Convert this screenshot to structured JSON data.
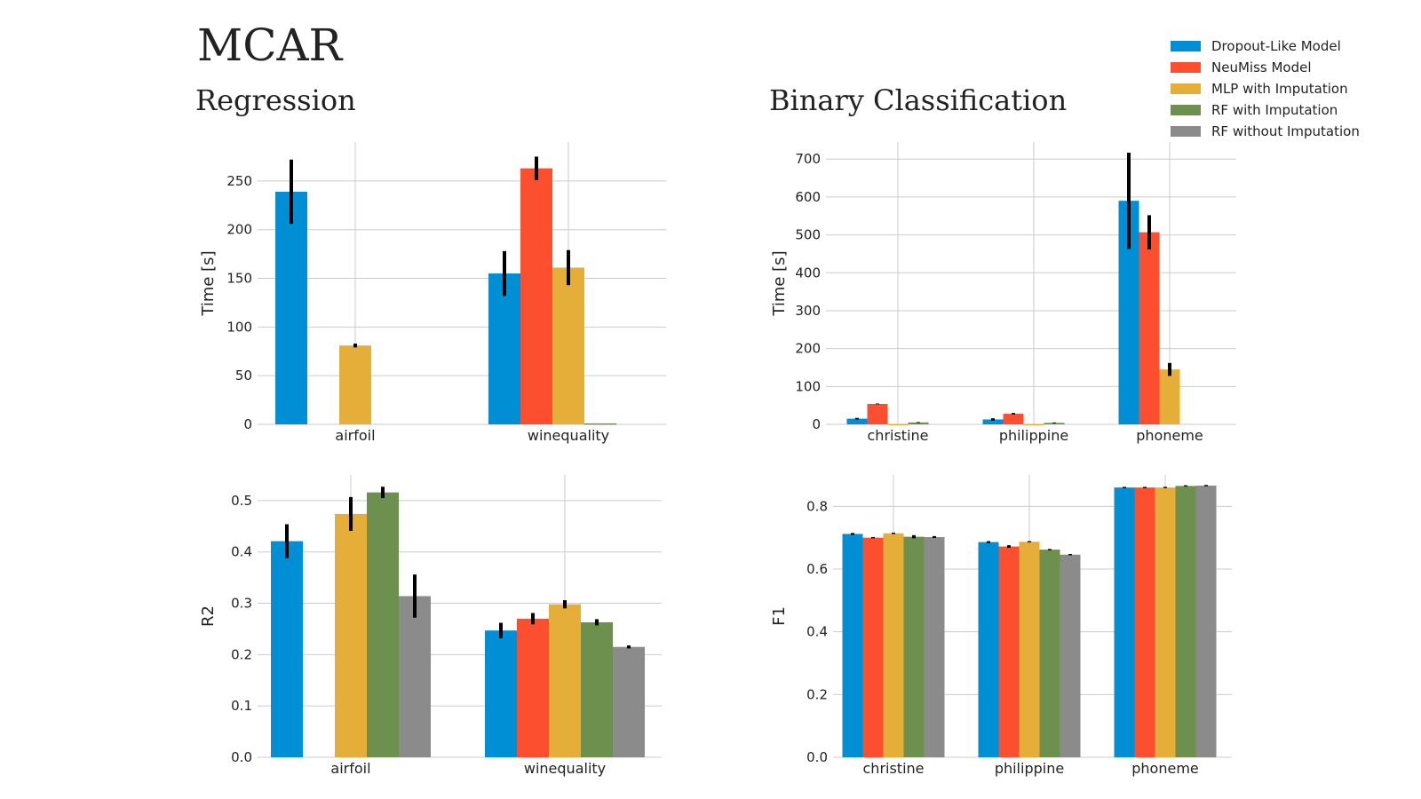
{
  "page": {
    "title": "MCAR"
  },
  "sections": {
    "regression": "Regression",
    "classification": "Binary Classification"
  },
  "legend": [
    {
      "label": "Dropout-Like Model",
      "color": "#008fd5"
    },
    {
      "label": "NeuMiss Model",
      "color": "#fc4f30"
    },
    {
      "label": "MLP with Imputation",
      "color": "#e5ae38"
    },
    {
      "label": "RF with Imputation",
      "color": "#6d904f"
    },
    {
      "label": "RF without Imputation",
      "color": "#8b8b8b"
    }
  ],
  "chart_data": [
    {
      "id": "reg-time",
      "type": "bar",
      "categories": [
        "airfoil",
        "winequality"
      ],
      "ylabel": "Time [s]",
      "ylim": [
        0,
        290
      ],
      "yticks": [
        0,
        50,
        100,
        150,
        200,
        250
      ],
      "tick_decimals": 0,
      "grid": true,
      "series": [
        {
          "name": "Dropout-Like Model",
          "values": [
            239,
            155
          ],
          "errors": [
            33,
            23
          ]
        },
        {
          "name": "NeuMiss Model",
          "values": [
            null,
            263
          ],
          "errors": [
            null,
            12
          ]
        },
        {
          "name": "MLP with Imputation",
          "values": [
            81,
            161
          ],
          "errors": [
            2,
            18
          ]
        },
        {
          "name": "RF with Imputation",
          "values": [
            null,
            1
          ],
          "errors": [
            null,
            0
          ]
        },
        {
          "name": "RF without Imputation",
          "values": [
            null,
            null
          ],
          "errors": [
            null,
            null
          ]
        }
      ]
    },
    {
      "id": "clf-time",
      "type": "bar",
      "categories": [
        "christine",
        "philippine",
        "phoneme"
      ],
      "ylabel": "Time [s]",
      "ylim": [
        0,
        745
      ],
      "yticks": [
        0,
        100,
        200,
        300,
        400,
        500,
        600,
        700
      ],
      "tick_decimals": 0,
      "grid": true,
      "series": [
        {
          "name": "Dropout-Like Model",
          "values": [
            15,
            13,
            590
          ],
          "errors": [
            2,
            3,
            127
          ]
        },
        {
          "name": "NeuMiss Model",
          "values": [
            54,
            28,
            507
          ],
          "errors": [
            1,
            2,
            45
          ]
        },
        {
          "name": "MLP with Imputation",
          "values": [
            1,
            1,
            145
          ],
          "errors": [
            0,
            0,
            17
          ]
        },
        {
          "name": "RF with Imputation",
          "values": [
            5,
            4,
            null
          ],
          "errors": [
            1,
            1,
            null
          ]
        },
        {
          "name": "RF without Imputation",
          "values": [
            null,
            null,
            null
          ],
          "errors": [
            null,
            null,
            null
          ]
        }
      ]
    },
    {
      "id": "reg-r2",
      "type": "bar",
      "categories": [
        "airfoil",
        "winequality"
      ],
      "ylabel": "R2",
      "ylim": [
        0,
        0.55
      ],
      "yticks": [
        0,
        0.1,
        0.2,
        0.3,
        0.4,
        0.5
      ],
      "tick_decimals": 1,
      "grid": true,
      "series": [
        {
          "name": "Dropout-Like Model",
          "values": [
            0.421,
            0.247
          ],
          "errors": [
            0.033,
            0.015
          ]
        },
        {
          "name": "NeuMiss Model",
          "values": [
            null,
            0.27
          ],
          "errors": [
            null,
            0.011
          ]
        },
        {
          "name": "MLP with Imputation",
          "values": [
            0.474,
            0.298
          ],
          "errors": [
            0.033,
            0.008
          ]
        },
        {
          "name": "RF with Imputation",
          "values": [
            0.516,
            0.263
          ],
          "errors": [
            0.011,
            0.006
          ]
        },
        {
          "name": "RF without Imputation",
          "values": [
            0.314,
            0.215
          ],
          "errors": [
            0.042,
            0.003
          ]
        }
      ]
    },
    {
      "id": "clf-f1",
      "type": "bar",
      "categories": [
        "christine",
        "philippine",
        "phoneme"
      ],
      "ylabel": "F1",
      "ylim": [
        0,
        0.9
      ],
      "yticks": [
        0,
        0.2,
        0.4,
        0.6,
        0.8
      ],
      "tick_decimals": 1,
      "grid": true,
      "series": [
        {
          "name": "Dropout-Like Model",
          "values": [
            0.712,
            0.686,
            0.86
          ],
          "errors": [
            0.003,
            0.003,
            0.002
          ]
        },
        {
          "name": "NeuMiss Model",
          "values": [
            0.7,
            0.672,
            0.86
          ],
          "errors": [
            0.002,
            0.004,
            0.002
          ]
        },
        {
          "name": "MLP with Imputation",
          "values": [
            0.714,
            0.687,
            0.86
          ],
          "errors": [
            0.002,
            0.002,
            0.002
          ]
        },
        {
          "name": "RF with Imputation",
          "values": [
            0.703,
            0.662,
            0.865
          ],
          "errors": [
            0.005,
            0.002,
            0.002
          ]
        },
        {
          "name": "RF without Imputation",
          "values": [
            0.702,
            0.646,
            0.866
          ],
          "errors": [
            0.003,
            0.002,
            0.002
          ]
        }
      ]
    }
  ]
}
